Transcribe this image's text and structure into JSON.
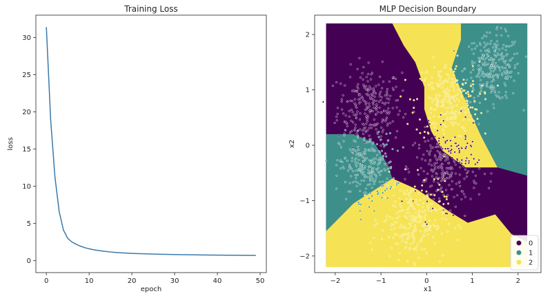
{
  "chart_data": [
    {
      "type": "line",
      "title": "Training Loss",
      "xlabel": "epoch",
      "ylabel": "loss",
      "xlim": [
        -2.45,
        51.45
      ],
      "ylim": [
        -1.6,
        33.0
      ],
      "xticks": [
        0,
        10,
        20,
        30,
        40,
        50
      ],
      "yticks": [
        0,
        5,
        10,
        15,
        20,
        25,
        30
      ],
      "line_color": "#3a78a8",
      "x": [
        0,
        1,
        2,
        3,
        4,
        5,
        6,
        7,
        8,
        9,
        10,
        11,
        12,
        13,
        14,
        15,
        16,
        17,
        18,
        19,
        20,
        21,
        22,
        23,
        24,
        25,
        26,
        27,
        28,
        29,
        30,
        31,
        32,
        33,
        34,
        35,
        36,
        37,
        38,
        39,
        40,
        41,
        42,
        43,
        44,
        45,
        46,
        47,
        48,
        49
      ],
      "values": [
        31.4,
        19.0,
        11.3,
        6.6,
        4.1,
        3.0,
        2.5,
        2.2,
        1.95,
        1.75,
        1.6,
        1.48,
        1.38,
        1.3,
        1.23,
        1.17,
        1.12,
        1.08,
        1.04,
        1.01,
        0.98,
        0.96,
        0.94,
        0.92,
        0.905,
        0.89,
        0.875,
        0.86,
        0.85,
        0.84,
        0.83,
        0.82,
        0.81,
        0.8,
        0.79,
        0.78,
        0.775,
        0.77,
        0.76,
        0.755,
        0.75,
        0.745,
        0.74,
        0.735,
        0.73,
        0.725,
        0.72,
        0.715,
        0.71,
        0.7
      ]
    },
    {
      "type": "scatter",
      "title": "MLP Decision Boundary",
      "xlabel": "x1",
      "ylabel": "x2",
      "xlim": [
        -2.45,
        2.5
      ],
      "ylim": [
        -2.3,
        2.35
      ],
      "xticks": [
        -2,
        -1,
        0,
        1,
        2
      ],
      "yticks": [
        -2,
        -1,
        0,
        1,
        2
      ],
      "tick_labels_x": [
        "−2",
        "−1",
        "0",
        "1",
        "2"
      ],
      "tick_labels_y": [
        "−2",
        "−1",
        "0",
        "1",
        "2"
      ],
      "grid_range": [
        -2.2,
        2.2
      ],
      "legend": {
        "placement": "lower-right",
        "entries": [
          {
            "label": "0",
            "color": "#440154"
          },
          {
            "label": "1",
            "color": "#3d8f8a"
          },
          {
            "label": "2",
            "color": "#f6e355"
          }
        ]
      },
      "class_colors": [
        "#440154",
        "#3d8f8a",
        "#f6e355"
      ],
      "region_polygons_data_units": {
        "yellow_top": [
          [
            -0.75,
            2.2
          ],
          [
            0.75,
            2.2
          ],
          [
            0.75,
            1.9
          ],
          [
            0.55,
            1.4
          ],
          [
            0.8,
            0.9
          ],
          [
            0.95,
            0.6
          ],
          [
            1.2,
            0.15
          ],
          [
            1.55,
            -0.4
          ],
          [
            0.85,
            -0.4
          ],
          [
            0.35,
            -0.1
          ],
          [
            0.1,
            0.25
          ],
          [
            -0.05,
            0.65
          ],
          [
            -0.05,
            1.05
          ],
          [
            -0.25,
            1.5
          ],
          [
            -0.5,
            1.8
          ]
        ],
        "teal_topright": [
          [
            0.75,
            2.2
          ],
          [
            2.2,
            2.2
          ],
          [
            2.2,
            -0.55
          ],
          [
            1.55,
            -0.4
          ],
          [
            1.2,
            0.15
          ],
          [
            0.95,
            0.6
          ],
          [
            0.8,
            0.9
          ],
          [
            0.55,
            1.4
          ],
          [
            0.75,
            1.9
          ]
        ],
        "teal_left": [
          [
            -2.2,
            0.2
          ],
          [
            -1.6,
            0.2
          ],
          [
            -1.15,
            0.05
          ],
          [
            -0.85,
            -0.35
          ],
          [
            -0.75,
            -0.6
          ],
          [
            -1.6,
            -1.05
          ],
          [
            -2.2,
            -1.55
          ]
        ],
        "yellow_bottom": [
          [
            -2.2,
            -1.55
          ],
          [
            -1.6,
            -1.05
          ],
          [
            -0.75,
            -0.6
          ],
          [
            -0.2,
            -0.8
          ],
          [
            0.5,
            -1.2
          ],
          [
            0.9,
            -1.4
          ],
          [
            1.5,
            -1.25
          ],
          [
            1.85,
            -1.6
          ],
          [
            2.2,
            -1.75
          ],
          [
            2.2,
            -2.2
          ],
          [
            -2.2,
            -2.2
          ]
        ]
      },
      "clusters": [
        {
          "class": 0,
          "center": [
            -1.25,
            0.7
          ],
          "spread": 0.35
        },
        {
          "class": 1,
          "center": [
            1.45,
            1.4
          ],
          "spread": 0.3
        },
        {
          "class": 2,
          "center": [
            0.45,
            0.8
          ],
          "spread": 0.35
        },
        {
          "class": 1,
          "center": [
            -1.3,
            -0.4
          ],
          "spread": 0.3
        },
        {
          "class": 0,
          "center": [
            0.45,
            -0.4
          ],
          "spread": 0.35
        },
        {
          "class": 2,
          "center": [
            -0.3,
            -1.35
          ],
          "spread": 0.35
        }
      ]
    }
  ]
}
